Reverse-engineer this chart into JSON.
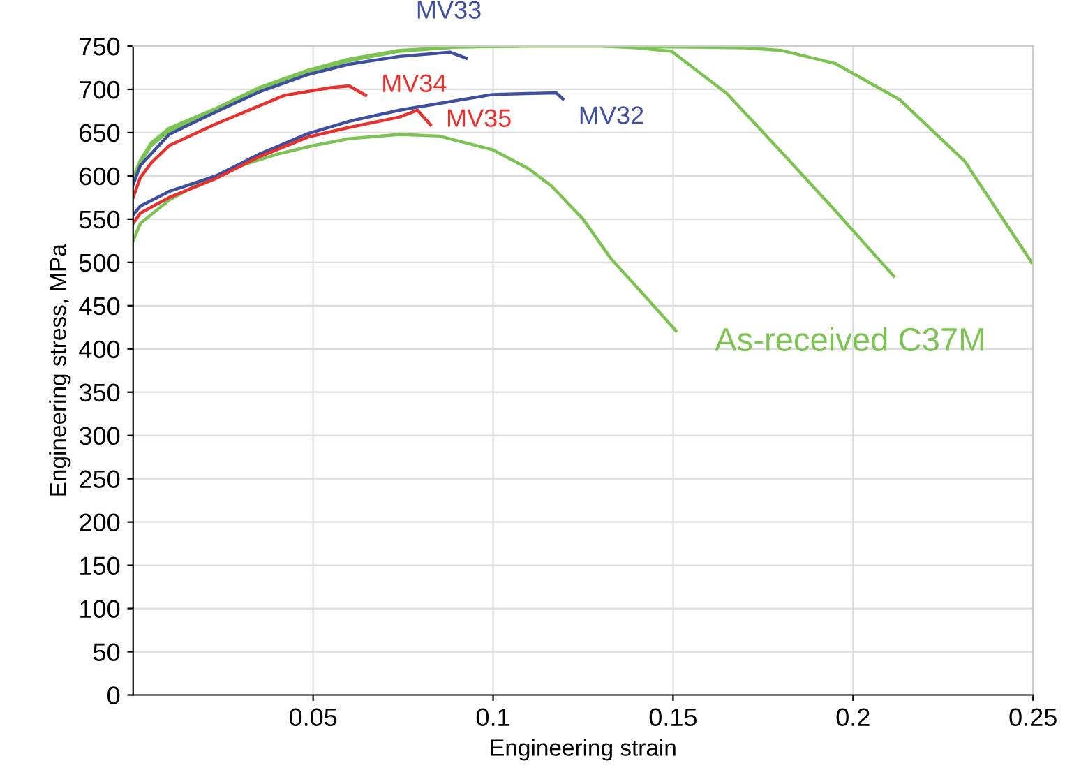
{
  "chart_data": {
    "type": "line",
    "xlabel": "Engineering strain",
    "ylabel": "Engineering stress, MPa",
    "xlim": [
      0,
      0.25
    ],
    "xticks": [
      0.05,
      0.1,
      0.15,
      0.2,
      0.25
    ],
    "ylim": [
      0,
      750
    ],
    "yticks": [
      0,
      50,
      100,
      150,
      200,
      250,
      300,
      350,
      400,
      450,
      500,
      550,
      600,
      650,
      700,
      750
    ],
    "grid": true,
    "marker": "none",
    "line_style": "solid",
    "series": [
      {
        "color": "#7dc353",
        "x": [
          0,
          0.002,
          0.01,
          0.02,
          0.03,
          0.04,
          0.05,
          0.06,
          0.074,
          0.085,
          0.1,
          0.11,
          0.1163,
          0.125,
          0.1328,
          0.142,
          0.1508
        ],
        "values": [
          525,
          545,
          572,
          595,
          612,
          625,
          635,
          643,
          648,
          646,
          630,
          608,
          588,
          550,
          504,
          462,
          421
        ]
      },
      {
        "color": "#7dc353",
        "x": [
          0,
          0.002,
          0.005,
          0.01,
          0.023,
          0.035,
          0.0485,
          0.06,
          0.074,
          0.09,
          0.11,
          0.13,
          0.14,
          0.1496,
          0.165,
          0.18,
          0.195,
          0.2113
        ],
        "values": [
          595,
          615,
          635,
          652,
          676,
          700,
          720,
          733,
          744,
          749,
          750,
          750,
          748,
          744,
          695,
          628,
          560,
          484
        ]
      },
      {
        "color": "#7dc353",
        "x": [
          0,
          0.002,
          0.005,
          0.01,
          0.023,
          0.035,
          0.0485,
          0.06,
          0.074,
          0.09,
          0.11,
          0.13,
          0.15,
          0.17,
          0.18,
          0.195,
          0.213,
          0.231,
          0.2496
        ],
        "values": [
          598,
          618,
          638,
          655,
          678,
          702,
          722,
          735,
          745,
          749,
          750,
          750,
          749,
          748,
          745,
          730,
          688,
          617,
          500
        ]
      },
      {
        "color": "#3e4fa0",
        "x": [
          0,
          0.002,
          0.01,
          0.023,
          0.035,
          0.0485,
          0.06,
          0.074,
          0.088,
          0.0925
        ],
        "values": [
          590,
          612,
          648,
          674,
          697,
          717,
          729,
          738,
          743,
          736
        ]
      },
      {
        "color": "#3e4fa0",
        "x": [
          0,
          0.002,
          0.01,
          0.023,
          0.035,
          0.0487,
          0.06,
          0.074,
          0.0998,
          0.1175,
          0.1194
        ],
        "values": [
          555,
          565,
          582,
          600,
          625,
          649,
          663,
          676,
          694,
          696,
          689
        ]
      },
      {
        "color": "#e8312f",
        "x": [
          0,
          0.002,
          0.005,
          0.01,
          0.023,
          0.042,
          0.055,
          0.06,
          0.0646
        ],
        "values": [
          575,
          598,
          615,
          635,
          660,
          693,
          702,
          704,
          693
        ]
      },
      {
        "color": "#e8312f",
        "x": [
          0,
          0.002,
          0.01,
          0.023,
          0.035,
          0.0487,
          0.06,
          0.074,
          0.079,
          0.0826
        ],
        "values": [
          545,
          557,
          575,
          597,
          622,
          645,
          656,
          668,
          676,
          659
        ]
      }
    ],
    "annotations": [
      {
        "text": "MV33",
        "x": 0.092,
        "y": 740
      },
      {
        "text": "MV34",
        "x": 0.0646,
        "y": 700
      },
      {
        "text": "MV35",
        "x": 0.0826,
        "y": 662
      },
      {
        "text": "MV32",
        "x": 0.1194,
        "y": 690
      },
      {
        "text": "As-received C37M",
        "x": 0.1508,
        "y": 421
      }
    ]
  }
}
